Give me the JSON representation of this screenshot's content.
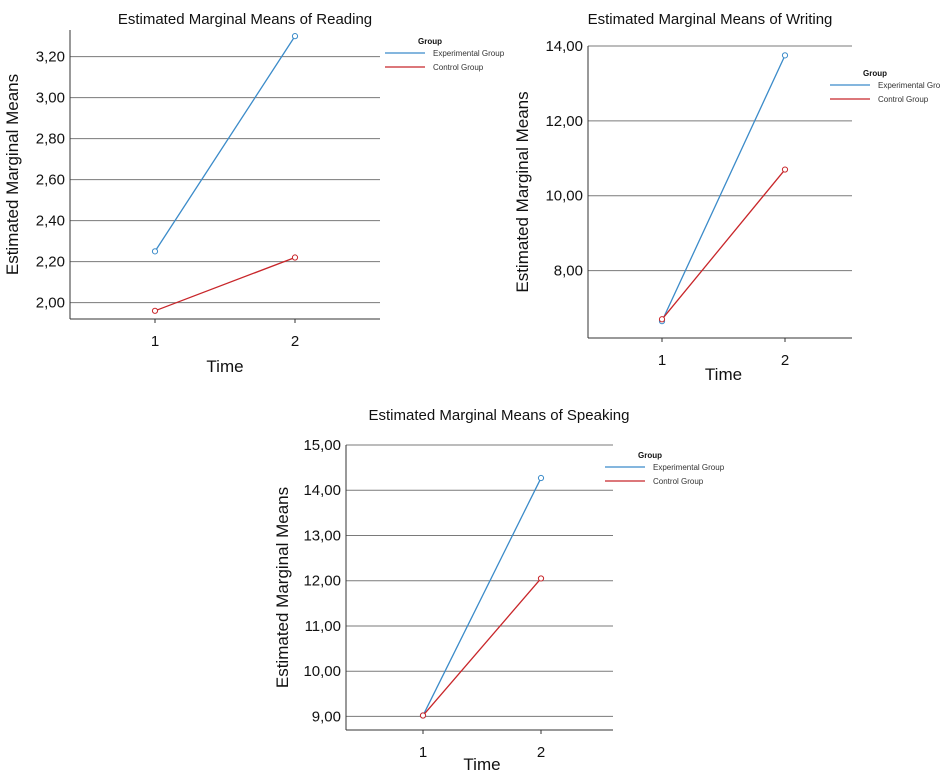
{
  "chart_data": [
    {
      "type": "line",
      "title": "Estimated Marginal Means of Reading",
      "xlabel": "Time",
      "ylabel": "Estimated Marginal Means",
      "categories": [
        "1",
        "2"
      ],
      "ylim": [
        1.92,
        3.33
      ],
      "yticks": [
        2.0,
        2.2,
        2.4,
        2.6,
        2.8,
        3.0,
        3.2
      ],
      "ytick_labels": [
        "2,00",
        "2,20",
        "2,40",
        "2,60",
        "2,80",
        "3,00",
        "3,20"
      ],
      "grid": true,
      "legend_title": "Group",
      "legend_position": "top-right",
      "series": [
        {
          "name": "Experimental Group",
          "values": [
            2.25,
            3.3
          ],
          "color": "#3B8BC9"
        },
        {
          "name": "Control Group",
          "values": [
            1.96,
            2.22
          ],
          "color": "#C8262A"
        }
      ]
    },
    {
      "type": "line",
      "title": "Estimated Marginal Means of Writing",
      "xlabel": "Time",
      "ylabel": "Estimated Marginal Means",
      "categories": [
        "1",
        "2"
      ],
      "ylim": [
        6.2,
        14.0
      ],
      "yticks": [
        8.0,
        10.0,
        12.0,
        14.0
      ],
      "ytick_labels": [
        "8,00",
        "10,00",
        "12,00",
        "14,00"
      ],
      "grid": true,
      "legend_title": "Group",
      "legend_position": "top-right",
      "series": [
        {
          "name": "Experimental Group",
          "values": [
            6.65,
            13.75
          ],
          "color": "#3B8BC9"
        },
        {
          "name": "Control Group",
          "values": [
            6.7,
            10.7
          ],
          "color": "#C8262A"
        }
      ]
    },
    {
      "type": "line",
      "title": "Estimated Marginal Means of Speaking",
      "xlabel": "Time",
      "ylabel": "Estimated Marginal Means",
      "categories": [
        "1",
        "2"
      ],
      "ylim": [
        8.7,
        15.0
      ],
      "yticks": [
        9.0,
        10.0,
        11.0,
        12.0,
        13.0,
        14.0,
        15.0
      ],
      "ytick_labels": [
        "9,00",
        "10,00",
        "11,00",
        "12,00",
        "13,00",
        "14,00",
        "15,00"
      ],
      "grid": true,
      "legend_title": "Group",
      "legend_position": "top-right",
      "series": [
        {
          "name": "Experimental Group",
          "values": [
            9.02,
            14.27
          ],
          "color": "#3B8BC9"
        },
        {
          "name": "Control Group",
          "values": [
            9.02,
            12.05
          ],
          "color": "#C8262A"
        }
      ]
    }
  ]
}
